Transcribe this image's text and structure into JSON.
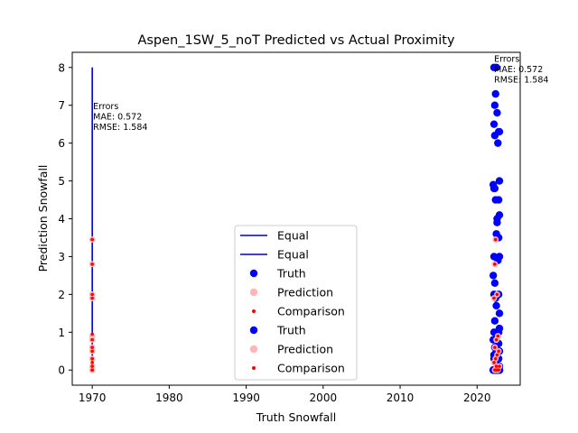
{
  "chart_data": {
    "type": "scatter",
    "title": "Aspen_1SW_5_noT Predicted vs Actual Proximity",
    "xlabel": "Truth Snowfall",
    "ylabel": "Prediction Snowfall",
    "xlim": [
      1967.4,
      2025.6
    ],
    "ylim": [
      -0.4,
      8.4
    ],
    "x_ticks": [
      1970,
      1980,
      1990,
      2000,
      2010,
      2020
    ],
    "y_ticks": [
      0,
      1,
      2,
      3,
      4,
      5,
      6,
      7,
      8
    ],
    "grid": false,
    "legend_position": "lower-center",
    "colors": {
      "equal": "#0000cc",
      "truth": "#0000ff",
      "prediction": "#ffb6b6",
      "comparison": "#ff0000"
    },
    "legend": [
      {
        "label": "Equal",
        "kind": "line",
        "color": "#0000cc"
      },
      {
        "label": "Equal",
        "kind": "line",
        "color": "#0000cc"
      },
      {
        "label": "Truth",
        "kind": "dot",
        "color": "#0000ff"
      },
      {
        "label": "Prediction",
        "kind": "dot",
        "color": "#ffb6b6"
      },
      {
        "label": "Comparison",
        "kind": "smalldot",
        "color": "#ff0000"
      },
      {
        "label": "Truth",
        "kind": "dot",
        "color": "#0000ff"
      },
      {
        "label": "Prediction",
        "kind": "dot",
        "color": "#ffb6b6"
      },
      {
        "label": "Comparison",
        "kind": "smalldot",
        "color": "#ff0000"
      }
    ],
    "annotations": [
      {
        "lines": [
          "Errors",
          "MAE: 0.572",
          "RMSE: 1.584"
        ],
        "x": 1970,
        "y": 6.9
      },
      {
        "lines": [
          "Errors",
          "MAE: 0.572",
          "RMSE: 1.584"
        ],
        "x": 2022.1,
        "y": 8.15
      }
    ],
    "equal_line": {
      "x": [
        1970,
        1970
      ],
      "y": [
        0,
        8
      ]
    },
    "truth": {
      "x": [
        2022.2,
        2022.5,
        2022.4,
        2022.3,
        2022.6,
        2022.2,
        2022.9,
        2022.8,
        2022.3,
        2022.7,
        2022.9,
        2022.1,
        2022.2,
        2022.3,
        2022.8,
        2022.4,
        2022.6,
        2022.9,
        2022.6,
        2022.8,
        2022.5,
        2022.2,
        2022.9,
        2022.7,
        2022.1,
        2022.3,
        2022.8,
        2022.2,
        2022.4,
        2022.9,
        2022.5,
        2022.3,
        2022.9,
        2022.8,
        2022.2,
        2022.6,
        2022.1,
        2022.4,
        2022.8,
        2022.3,
        2022.9,
        2022.5,
        2022.2,
        2022.8,
        2022.2,
        2022.4,
        2022.9,
        2022.6,
        2022.9,
        2022.1,
        2022.3,
        2022.8,
        2022.5,
        2022.2,
        2022.6,
        2022.9,
        2022.1,
        2022.3,
        2022.7,
        2022.4,
        2022.8,
        2022.2,
        2022.6,
        2022.9,
        2022.3
      ],
      "y": [
        8.0,
        8.0,
        7.3,
        7.0,
        6.8,
        6.5,
        6.3,
        6.3,
        6.2,
        6.0,
        5.0,
        4.9,
        4.8,
        4.8,
        4.5,
        4.5,
        4.0,
        4.1,
        3.9,
        3.5,
        3.6,
        3.0,
        3.0,
        2.9,
        2.5,
        2.3,
        2.0,
        2.0,
        1.9,
        1.5,
        1.7,
        1.3,
        1.1,
        1.0,
        1.0,
        0.9,
        0.8,
        0.8,
        0.7,
        0.6,
        0.5,
        0.5,
        0.4,
        0.3,
        0.3,
        0.2,
        0.1,
        0.1,
        0.0,
        0.0,
        0.0,
        0.0,
        0.0,
        0.0,
        0.0,
        0.0,
        0.0,
        0.0,
        0.0,
        0.0,
        0.0,
        0.0,
        0.0,
        0.0,
        0.0
      ]
    },
    "prediction": {
      "x": [
        1970,
        1970,
        1970,
        1970,
        1970,
        1970,
        1970,
        1970,
        1970,
        1970,
        1970,
        1970,
        2022.4,
        2022.3,
        2022.6,
        2022.2,
        2022.7,
        2022.5,
        2022.3,
        2022.8,
        2022.6,
        2022.4,
        2022.2,
        2022.9,
        2022.5,
        2022.3,
        2022.7
      ],
      "y": [
        3.45,
        2.8,
        2.0,
        1.9,
        0.9,
        0.8,
        0.6,
        0.5,
        0.3,
        0.1,
        0.0,
        0.0,
        3.45,
        2.8,
        2.0,
        1.9,
        0.9,
        0.8,
        0.6,
        0.5,
        0.4,
        0.3,
        0.2,
        0.1,
        0.1,
        0.0,
        0.0
      ]
    },
    "comparison": {
      "x": [
        1970,
        1970,
        1970,
        1970,
        1970,
        1970,
        1970,
        1970,
        1970,
        1970,
        1970,
        1970,
        1970,
        2022.4,
        2022.3,
        2022.6,
        2022.2,
        2022.7,
        2022.5,
        2022.3,
        2022.8,
        2022.6,
        2022.4,
        2022.2,
        2022.9,
        2022.5,
        2022.3,
        2022.7,
        2022.8,
        2022.4,
        2022.6
      ],
      "y": [
        3.45,
        2.8,
        2.0,
        1.9,
        0.95,
        0.8,
        0.6,
        0.5,
        0.3,
        0.2,
        0.1,
        0.0,
        0.0,
        3.45,
        2.8,
        2.0,
        1.9,
        0.9,
        0.8,
        0.6,
        0.5,
        0.4,
        0.3,
        0.2,
        0.1,
        0.1,
        0.0,
        0.0,
        0.0,
        0.0,
        0.0
      ]
    }
  }
}
